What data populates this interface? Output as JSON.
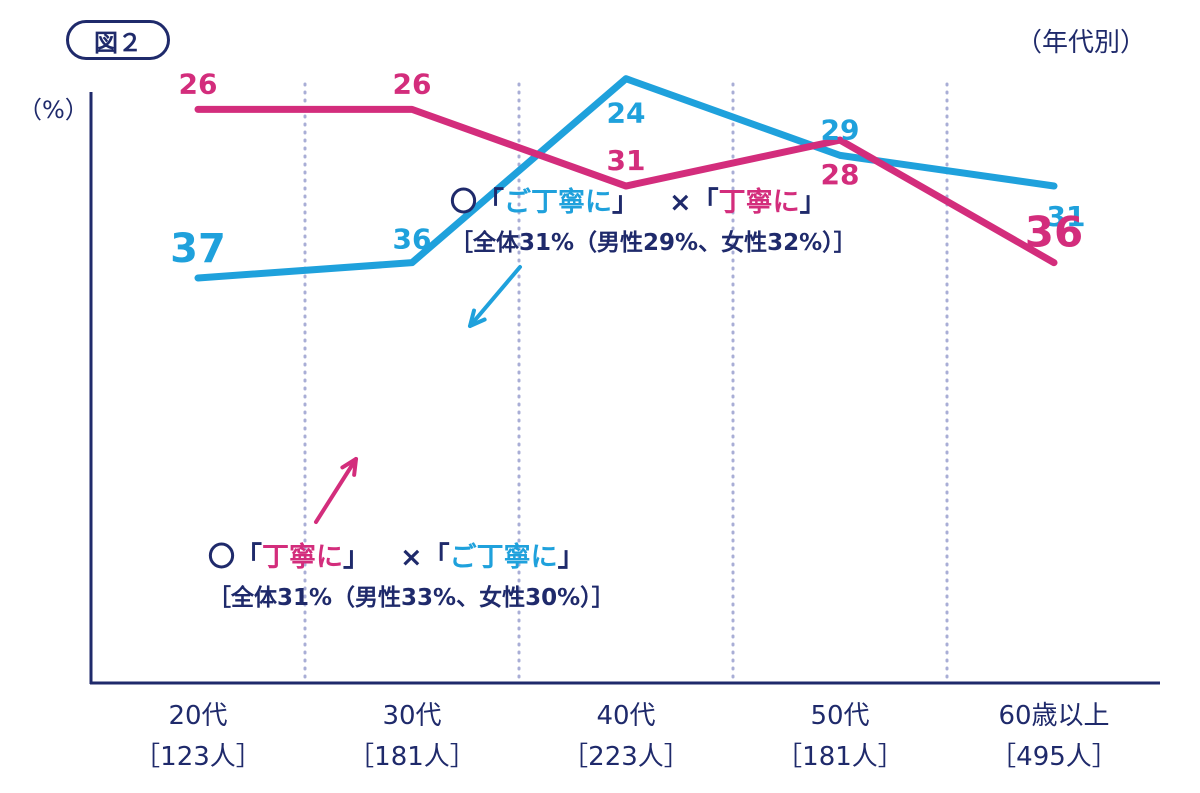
{
  "badge": "図２",
  "corner_label": "（年代別）",
  "unit_label": "（%）",
  "annotation_blue": {
    "circle": "〇",
    "open1": "「",
    "polite_a": "ご丁寧に",
    "close1": "」",
    "cross": "×",
    "open2": "「",
    "polite_b": "丁寧に",
    "close2": "」",
    "stats": "［全体31%（男性29%、女性32%）］"
  },
  "annotation_pink": {
    "circle": "〇",
    "open1": "「",
    "polite_a": "丁寧に",
    "close1": "」",
    "cross": "×",
    "open2": "「",
    "polite_b": "ご丁寧に",
    "close2": "」",
    "stats": "［全体31%（男性33%、女性30%）］"
  },
  "colors": {
    "blue": "#1fa1dc",
    "pink": "#d32d7c",
    "navy": "#1f2a6b",
    "grid": "#a9aed6"
  },
  "chart_data": {
    "type": "line",
    "categories": [
      "20代",
      "30代",
      "40代",
      "50代",
      "60歳以上"
    ],
    "category_counts": [
      "［123人］",
      "［181人］",
      "［223人］",
      "［181人］",
      "［495人］"
    ],
    "series": [
      {
        "key": "blue",
        "values": [
          37,
          36,
          24,
          29,
          31
        ],
        "labels": [
          "37",
          "36",
          "24",
          "29",
          "31"
        ]
      },
      {
        "key": "pink",
        "values": [
          26,
          26,
          31,
          28,
          36
        ],
        "labels": [
          "26",
          "26",
          "31",
          "28",
          "36"
        ]
      }
    ],
    "ylabel": "（%）",
    "grid": "vertical-dotted"
  }
}
